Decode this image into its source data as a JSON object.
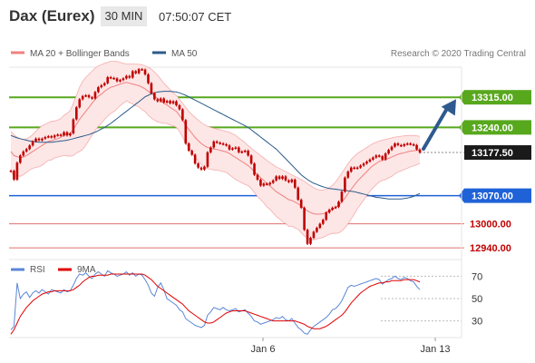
{
  "header": {
    "title": "Dax (Eurex)",
    "timeframe": "30 MIN",
    "time": "07:50:07 CET"
  },
  "legend": {
    "bollinger": "MA 20 + Bollinger Bands",
    "ma50": "MA 50",
    "credit": "Research © 2020 Trading Central"
  },
  "rsi_legend": {
    "rsi": "RSI",
    "ma9": "9MA"
  },
  "colors": {
    "price": "#c00000",
    "bollinger": "#f08080",
    "band_fill": "#fde6e6",
    "ma50": "#2d5b8a",
    "green_level": "#58a81e",
    "blue_level": "#1f62d8",
    "red_level": "#e07070",
    "rsi": "#5b86d6",
    "rsi_ma": "#e00000",
    "arrow": "#2e5a8e"
  },
  "chart_data": [
    {
      "type": "line",
      "title": "Dax (Eurex)",
      "ylim": [
        12920,
        13390
      ],
      "x_ticks": [
        "Jan 6",
        "Jan 13"
      ],
      "levels": [
        {
          "label": "13315.00",
          "value": 13315,
          "kind": "resistance"
        },
        {
          "label": "13240.00",
          "value": 13240,
          "kind": "resistance"
        },
        {
          "label": "13177.50",
          "value": 13177.5,
          "kind": "last"
        },
        {
          "label": "13070.00",
          "value": 13070,
          "kind": "pivot"
        },
        {
          "label": "13000.00",
          "value": 13000,
          "kind": "support"
        },
        {
          "label": "12940.00",
          "value": 12940,
          "kind": "support"
        }
      ],
      "series": [
        {
          "name": "Price",
          "y": [
            13132,
            13110,
            13152,
            13170,
            13180,
            13186,
            13195,
            13205,
            13212,
            13208,
            13212,
            13216,
            13218,
            13215,
            13220,
            13222,
            13220,
            13228,
            13220,
            13225,
            13260,
            13290,
            13310,
            13318,
            13320,
            13315,
            13312,
            13328,
            13340,
            13345,
            13350,
            13365,
            13363,
            13362,
            13355,
            13358,
            13362,
            13368,
            13364,
            13380,
            13375,
            13385,
            13384,
            13372,
            13350,
            13325,
            13310,
            13305,
            13312,
            13302,
            13306,
            13300,
            13305,
            13295,
            13285,
            13258,
            13200,
            13182,
            13172,
            13150,
            13140,
            13135,
            13142,
            13178,
            13190,
            13205,
            13202,
            13200,
            13198,
            13195,
            13185,
            13188,
            13190,
            13178,
            13180,
            13182,
            13170,
            13150,
            13122,
            13110,
            13095,
            13100,
            13098,
            13102,
            13108,
            13118,
            13112,
            13118,
            13108,
            13104,
            13110,
            13090,
            13060,
            13040,
            12985,
            12950,
            12965,
            12980,
            12990,
            13000,
            13010,
            13028,
            13035,
            13040,
            13042,
            13055,
            13080,
            13115,
            13130,
            13140,
            13138,
            13140,
            13145,
            13150,
            13155,
            13160,
            13165,
            13170,
            13168,
            13160,
            13175,
            13184,
            13192,
            13200,
            13196,
            13194,
            13198,
            13200,
            13198,
            13196,
            13185,
            13177.5
          ]
        },
        {
          "name": "MA 20",
          "y": [
            13180,
            13170,
            13167,
            13165,
            13166,
            13170,
            13175,
            13180,
            13185,
            13190,
            13195,
            13200,
            13205,
            13207,
            13210,
            13212,
            13215,
            13220,
            13222,
            13225,
            13235,
            13248,
            13260,
            13270,
            13280,
            13290,
            13300,
            13310,
            13318,
            13323,
            13330,
            13335,
            13340,
            13342,
            13345,
            13348,
            13350,
            13352,
            13350,
            13348,
            13346,
            13344,
            13340,
            13336,
            13330,
            13324,
            13318,
            13312,
            13306,
            13300,
            13296,
            13290,
            13285,
            13280,
            13270,
            13258,
            13245,
            13235,
            13225,
            13215,
            13207,
            13200,
            13194,
            13190,
            13188,
            13186,
            13185,
            13183,
            13181,
            13179,
            13175,
            13170,
            13165,
            13160,
            13155,
            13150,
            13145,
            13138,
            13130,
            13122,
            13115,
            13108,
            13100,
            13094,
            13087,
            13080,
            13075,
            13070,
            13065,
            13060,
            13058,
            13054,
            13050,
            13044,
            13038,
            13032,
            13028,
            13025,
            13024,
            13024,
            13025,
            13028,
            13032,
            13036,
            13040,
            13046,
            13054,
            13064,
            13075,
            13086,
            13096,
            13106,
            13114,
            13122,
            13130,
            13138,
            13145,
            13150,
            13155,
            13158,
            13160,
            13163,
            13166,
            13170,
            13173,
            13175,
            13177,
            13179,
            13181,
            13182,
            13183,
            13184
          ]
        },
        {
          "name": "Bollinger upper",
          "y": [
            13230,
            13222,
            13215,
            13212,
            13210,
            13212,
            13216,
            13222,
            13230,
            13238,
            13244,
            13248,
            13252,
            13255,
            13256,
            13258,
            13262,
            13270,
            13275,
            13282,
            13300,
            13320,
            13340,
            13355,
            13365,
            13372,
            13380,
            13388,
            13393,
            13396,
            13400,
            13402,
            13405,
            13405,
            13404,
            13402,
            13400,
            13398,
            13398,
            13398,
            13398,
            13397,
            13396,
            13393,
            13390,
            13385,
            13378,
            13370,
            13360,
            13350,
            13342,
            13334,
            13326,
            13320,
            13310,
            13300,
            13290,
            13280,
            13272,
            13265,
            13258,
            13252,
            13247,
            13243,
            13240,
            13238,
            13236,
            13234,
            13232,
            13230,
            13228,
            13224,
            13220,
            13214,
            13208,
            13202,
            13195,
            13188,
            13182,
            13176,
            13170,
            13164,
            13158,
            13152,
            13147,
            13142,
            13138,
            13134,
            13130,
            13126,
            13122,
            13118,
            13114,
            13110,
            13106,
            13100,
            13095,
            13090,
            13086,
            13084,
            13084,
            13086,
            13090,
            13096,
            13104,
            13115,
            13126,
            13138,
            13150,
            13160,
            13168,
            13175,
            13180,
            13185,
            13190,
            13195,
            13200,
            13203,
            13206,
            13208,
            13210,
            13212,
            13214,
            13216,
            13217,
            13218,
            13219,
            13220,
            13220,
            13220,
            13219,
            13218
          ]
        },
        {
          "name": "Bollinger lower",
          "y": [
            13130,
            13118,
            13120,
            13118,
            13122,
            13128,
            13134,
            13138,
            13140,
            13142,
            13146,
            13152,
            13158,
            13159,
            13164,
            13166,
            13168,
            13170,
            13169,
            13168,
            13170,
            13176,
            13180,
            13185,
            13195,
            13208,
            13220,
            13232,
            13243,
            13250,
            13260,
            13268,
            13275,
            13279,
            13286,
            13294,
            13300,
            13306,
            13302,
            13298,
            13294,
            13291,
            13284,
            13279,
            13270,
            13263,
            13258,
            13254,
            13252,
            13250,
            13250,
            13246,
            13244,
            13240,
            13230,
            13216,
            13200,
            13190,
            13178,
            13165,
            13156,
            13148,
            13141,
            13137,
            13136,
            13134,
            13134,
            13132,
            13130,
            13128,
            13122,
            13116,
            13110,
            13106,
            13102,
            13098,
            13095,
            13088,
            13078,
            13068,
            13060,
            13052,
            13042,
            13036,
            13027,
            13018,
            13012,
            13006,
            13000,
            12994,
            12994,
            12990,
            12986,
            12978,
            12970,
            12964,
            12961,
            12960,
            12962,
            12964,
            12966,
            12970,
            12974,
            12976,
            12976,
            12977,
            12982,
            12990,
            13000,
            13012,
            13024,
            13037,
            13048,
            13059,
            13070,
            13081,
            13090,
            13097,
            13104,
            13108,
            13110,
            13114,
            13118,
            13124,
            13129,
            13132,
            13135,
            13138,
            13142,
            13144,
            13147,
            13150
          ]
        },
        {
          "name": "MA 50",
          "y": [
            13220,
            13217,
            13214,
            13212,
            13210,
            13208,
            13206,
            13205,
            13204,
            13203,
            13203,
            13203,
            13203,
            13203,
            13204,
            13205,
            13206,
            13207,
            13208,
            13210,
            13212,
            13214,
            13216,
            13218,
            13220,
            13222,
            13225,
            13228,
            13232,
            13236,
            13240,
            13245,
            13250,
            13256,
            13262,
            13268,
            13274,
            13280,
            13286,
            13292,
            13298,
            13304,
            13310,
            13316,
            13320,
            13324,
            13326,
            13328,
            13329,
            13330,
            13330,
            13330,
            13329,
            13328,
            13326,
            13323,
            13320,
            13316,
            13312,
            13308,
            13304,
            13300,
            13296,
            13292,
            13288,
            13284,
            13280,
            13276,
            13272,
            13268,
            13264,
            13260,
            13256,
            13252,
            13248,
            13244,
            13240,
            13234,
            13228,
            13222,
            13216,
            13210,
            13204,
            13198,
            13192,
            13186,
            13178,
            13170,
            13162,
            13154,
            13146,
            13138,
            13130,
            13122,
            13116,
            13110,
            13105,
            13101,
            13098,
            13095,
            13092,
            13090,
            13088,
            13087,
            13086,
            13085,
            13084,
            13083,
            13082,
            13081,
            13080,
            13078,
            13076,
            13074,
            13072,
            13070,
            13068,
            13066,
            13065,
            13064,
            13063,
            13062,
            13062,
            13062,
            13062,
            13062,
            13063,
            13064,
            13066,
            13068,
            13072,
            13075
          ]
        }
      ]
    },
    {
      "type": "line",
      "title": "RSI",
      "ylim": [
        15,
        85
      ],
      "y_ticks": [
        70,
        50,
        30
      ],
      "x_ticks": [
        "Jan 6",
        "Jan 13"
      ],
      "series": [
        {
          "name": "RSI",
          "y": [
            22,
            25,
            64,
            50,
            54,
            56,
            51,
            55,
            57,
            55,
            58,
            56,
            54,
            58,
            57,
            56,
            55,
            58,
            56,
            57,
            62,
            68,
            72,
            71,
            73,
            70,
            68,
            72,
            74,
            72,
            70,
            75,
            73,
            72,
            70,
            71,
            72,
            74,
            71,
            73,
            70,
            72,
            71,
            67,
            62,
            55,
            52,
            60,
            64,
            58,
            50,
            48,
            46,
            44,
            40,
            38,
            32,
            30,
            28,
            26,
            25,
            24,
            26,
            35,
            38,
            42,
            41,
            40,
            42,
            40,
            39,
            40,
            41,
            38,
            39,
            40,
            37,
            34,
            30,
            29,
            27,
            28,
            29,
            30,
            31,
            33,
            32,
            34,
            31,
            30,
            32,
            28,
            24,
            22,
            19,
            18,
            22,
            25,
            27,
            29,
            31,
            33,
            36,
            40,
            41,
            44,
            48,
            54,
            60,
            62,
            61,
            62,
            63,
            64,
            65,
            66,
            67,
            68,
            67,
            63,
            65,
            67,
            68,
            70,
            68,
            67,
            69,
            68,
            66,
            65,
            61,
            58
          ]
        },
        {
          "name": "9MA",
          "y": [
            18,
            22,
            28,
            34,
            38,
            42,
            45,
            48,
            50,
            52,
            54,
            55,
            56,
            56,
            57,
            57,
            57,
            57,
            57,
            57,
            58,
            60,
            62,
            65,
            67,
            69,
            70,
            70,
            71,
            71,
            71,
            71,
            72,
            72,
            72,
            72,
            72,
            72,
            72,
            72,
            72,
            72,
            72,
            71,
            69,
            67,
            64,
            61,
            59,
            57,
            55,
            53,
            51,
            49,
            47,
            45,
            42,
            39,
            37,
            35,
            33,
            31,
            29,
            28,
            28,
            29,
            31,
            33,
            35,
            37,
            38,
            39,
            39,
            39,
            39,
            39,
            38,
            37,
            36,
            35,
            34,
            33,
            32,
            31,
            30,
            30,
            30,
            30,
            30,
            30,
            30,
            30,
            29,
            28,
            27,
            25,
            24,
            23,
            23,
            23,
            24,
            25,
            27,
            29,
            31,
            33,
            35,
            38,
            42,
            46,
            49,
            52,
            55,
            57,
            59,
            61,
            62,
            63,
            64,
            64,
            65,
            65,
            66,
            66,
            66,
            66,
            67,
            67,
            67,
            67,
            66,
            65
          ]
        }
      ]
    }
  ]
}
